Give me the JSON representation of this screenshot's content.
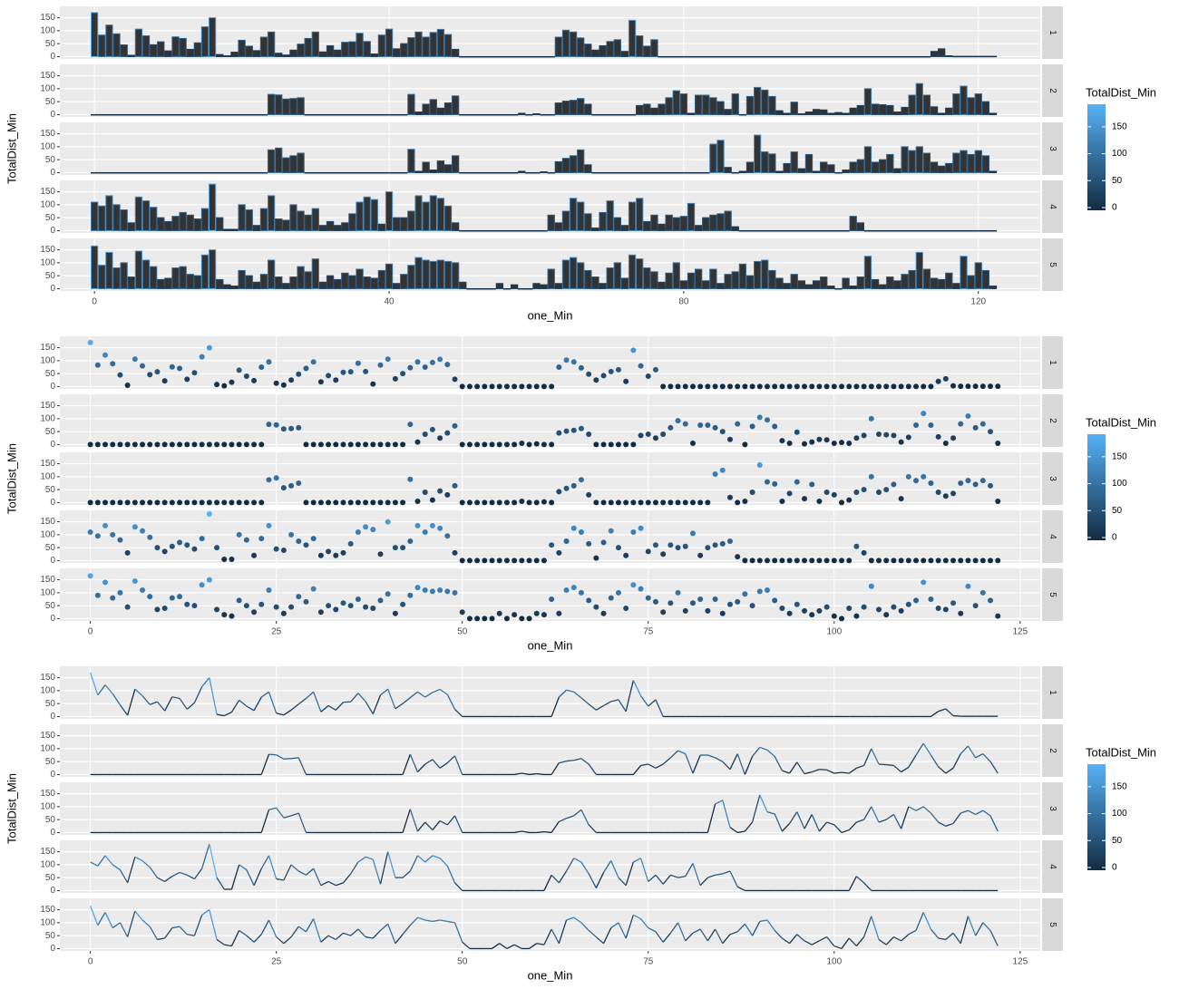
{
  "facet_data": {
    "x": [
      0,
      1,
      2,
      3,
      4,
      5,
      6,
      7,
      8,
      9,
      10,
      11,
      12,
      13,
      14,
      15,
      16,
      17,
      18,
      19,
      20,
      21,
      22,
      23,
      24,
      25,
      26,
      27,
      28,
      29,
      30,
      31,
      32,
      33,
      34,
      35,
      36,
      37,
      38,
      39,
      40,
      41,
      42,
      43,
      44,
      45,
      46,
      47,
      48,
      49,
      50,
      51,
      52,
      53,
      54,
      55,
      56,
      57,
      58,
      59,
      60,
      61,
      62,
      63,
      64,
      65,
      66,
      67,
      68,
      69,
      70,
      71,
      72,
      73,
      74,
      75,
      76,
      77,
      78,
      79,
      80,
      81,
      82,
      83,
      84,
      85,
      86,
      87,
      88,
      89,
      90,
      91,
      92,
      93,
      94,
      95,
      96,
      97,
      98,
      99,
      100,
      101,
      102,
      103,
      104,
      105,
      106,
      107,
      108,
      109,
      110,
      111,
      112,
      113,
      114,
      115,
      116,
      117,
      118,
      119,
      120,
      121,
      122
    ],
    "series": [
      {
        "name": "1",
        "values": [
          170,
          83,
          122,
          88,
          45,
          5,
          106,
          80,
          46,
          57,
          22,
          76,
          70,
          28,
          53,
          115,
          150,
          8,
          3,
          17,
          63,
          40,
          23,
          75,
          95,
          13,
          6,
          25,
          48,
          70,
          95,
          18,
          42,
          25,
          55,
          57,
          90,
          58,
          10,
          83,
          106,
          30,
          50,
          73,
          95,
          75,
          93,
          105,
          85,
          28,
          0,
          0,
          0,
          0,
          0,
          0,
          0,
          0,
          0,
          0,
          0,
          0,
          0,
          75,
          102,
          95,
          72,
          48,
          25,
          42,
          58,
          65,
          20,
          140,
          80,
          40,
          65,
          0,
          0,
          0,
          0,
          0,
          0,
          0,
          0,
          0,
          0,
          0,
          0,
          0,
          0,
          0,
          0,
          0,
          0,
          0,
          0,
          0,
          0,
          0,
          0,
          0,
          0,
          0,
          0,
          0,
          0,
          0,
          0,
          0,
          0,
          0,
          0,
          0,
          20,
          30,
          3,
          1,
          1,
          1,
          1,
          1,
          1
        ]
      },
      {
        "name": "2",
        "values": [
          0,
          0,
          0,
          0,
          0,
          0,
          0,
          0,
          0,
          0,
          0,
          0,
          0,
          0,
          0,
          0,
          0,
          0,
          0,
          0,
          0,
          0,
          0,
          0,
          78,
          76,
          60,
          62,
          65,
          0,
          0,
          0,
          0,
          0,
          0,
          0,
          0,
          0,
          0,
          0,
          0,
          0,
          0,
          78,
          10,
          40,
          58,
          25,
          45,
          72,
          0,
          0,
          0,
          0,
          0,
          0,
          0,
          0,
          5,
          0,
          3,
          0,
          0,
          45,
          52,
          55,
          62,
          40,
          0,
          0,
          0,
          0,
          0,
          0,
          35,
          40,
          25,
          40,
          65,
          92,
          80,
          5,
          75,
          75,
          65,
          50,
          20,
          80,
          0,
          70,
          105,
          95,
          70,
          15,
          5,
          48,
          3,
          10,
          20,
          18,
          5,
          8,
          5,
          25,
          35,
          100,
          40,
          38,
          35,
          10,
          28,
          75,
          120,
          75,
          30,
          5,
          25,
          80,
          110,
          65,
          80,
          50,
          5
        ]
      },
      {
        "name": "3",
        "values": [
          0,
          0,
          0,
          0,
          0,
          0,
          0,
          0,
          0,
          0,
          0,
          0,
          0,
          0,
          0,
          0,
          0,
          0,
          0,
          0,
          0,
          0,
          0,
          0,
          88,
          95,
          57,
          65,
          75,
          0,
          0,
          0,
          0,
          0,
          0,
          0,
          0,
          0,
          0,
          0,
          0,
          0,
          0,
          90,
          5,
          40,
          10,
          45,
          30,
          65,
          0,
          0,
          0,
          0,
          0,
          0,
          0,
          0,
          5,
          0,
          0,
          3,
          0,
          42,
          55,
          65,
          88,
          30,
          0,
          0,
          0,
          0,
          0,
          0,
          0,
          0,
          0,
          0,
          0,
          0,
          0,
          0,
          0,
          0,
          110,
          125,
          20,
          0,
          5,
          40,
          145,
          80,
          72,
          5,
          35,
          80,
          15,
          70,
          5,
          40,
          30,
          0,
          10,
          40,
          50,
          100,
          40,
          50,
          70,
          15,
          100,
          85,
          100,
          75,
          40,
          25,
          35,
          75,
          85,
          70,
          85,
          65,
          5
        ]
      },
      {
        "name": "4",
        "values": [
          110,
          95,
          135,
          100,
          80,
          30,
          130,
          115,
          90,
          50,
          35,
          55,
          70,
          60,
          45,
          85,
          180,
          50,
          5,
          5,
          100,
          80,
          20,
          85,
          135,
          45,
          40,
          100,
          75,
          60,
          85,
          20,
          35,
          20,
          30,
          65,
          110,
          130,
          120,
          25,
          150,
          50,
          50,
          75,
          135,
          110,
          135,
          125,
          95,
          30,
          0,
          0,
          0,
          0,
          0,
          0,
          0,
          0,
          0,
          0,
          0,
          0,
          60,
          30,
          75,
          125,
          110,
          65,
          10,
          70,
          115,
          50,
          20,
          110,
          125,
          35,
          60,
          25,
          60,
          50,
          55,
          105,
          20,
          50,
          60,
          65,
          75,
          15,
          0,
          0,
          0,
          0,
          0,
          0,
          0,
          0,
          0,
          0,
          0,
          0,
          0,
          0,
          0,
          55,
          30,
          0,
          0,
          0,
          0,
          0,
          0,
          0,
          0,
          0,
          0,
          0,
          0,
          0,
          0,
          0,
          0,
          0,
          0
        ]
      },
      {
        "name": "5",
        "values": [
          165,
          90,
          140,
          80,
          100,
          45,
          145,
          110,
          85,
          35,
          40,
          80,
          85,
          55,
          50,
          130,
          150,
          35,
          15,
          10,
          70,
          50,
          25,
          55,
          110,
          45,
          20,
          45,
          85,
          65,
          115,
          25,
          50,
          35,
          60,
          50,
          75,
          45,
          40,
          70,
          95,
          20,
          55,
          90,
          120,
          110,
          105,
          110,
          105,
          100,
          25,
          0,
          0,
          0,
          0,
          20,
          0,
          15,
          0,
          0,
          20,
          15,
          75,
          20,
          110,
          120,
          100,
          70,
          45,
          20,
          80,
          100,
          40,
          130,
          115,
          80,
          65,
          25,
          60,
          100,
          30,
          60,
          75,
          30,
          75,
          20,
          55,
          65,
          95,
          50,
          105,
          110,
          70,
          40,
          20,
          55,
          30,
          15,
          30,
          45,
          10,
          0,
          40,
          10,
          45,
          125,
          35,
          15,
          45,
          30,
          55,
          70,
          140,
          75,
          40,
          35,
          60,
          20,
          125,
          50,
          100,
          70,
          10
        ]
      }
    ],
    "color_scale": {
      "low": "#132B43",
      "high": "#56B1F7",
      "limits": [
        0,
        180
      ],
      "ticks": [
        0,
        50,
        100,
        150
      ]
    }
  },
  "chart_data": [
    {
      "type": "bar",
      "xlabel": "one_Min",
      "ylabel": "TotalDist_Min",
      "legend_title": "TotalDist_Min",
      "xlim": [
        -4.7,
        128.4
      ],
      "xticks": [
        0,
        40,
        80,
        120
      ],
      "ylim": [
        -9,
        194
      ],
      "yticks": [
        0,
        50,
        100,
        150
      ]
    },
    {
      "type": "scatter",
      "xlabel": "one_Min",
      "ylabel": "TotalDist_Min",
      "legend_title": "TotalDist_Min",
      "xlim": [
        -4.1,
        127.7
      ],
      "xticks": [
        0,
        25,
        50,
        75,
        100,
        125
      ],
      "ylim": [
        -9,
        194
      ],
      "yticks": [
        0,
        50,
        100,
        150
      ]
    },
    {
      "type": "line",
      "xlabel": "one_Min",
      "ylabel": "TotalDist_Min",
      "legend_title": "TotalDist_Min",
      "xlim": [
        -4.1,
        127.7
      ],
      "xticks": [
        0,
        25,
        50,
        75,
        100,
        125
      ],
      "ylim": [
        -9,
        194
      ],
      "yticks": [
        0,
        50,
        100,
        150
      ]
    }
  ]
}
